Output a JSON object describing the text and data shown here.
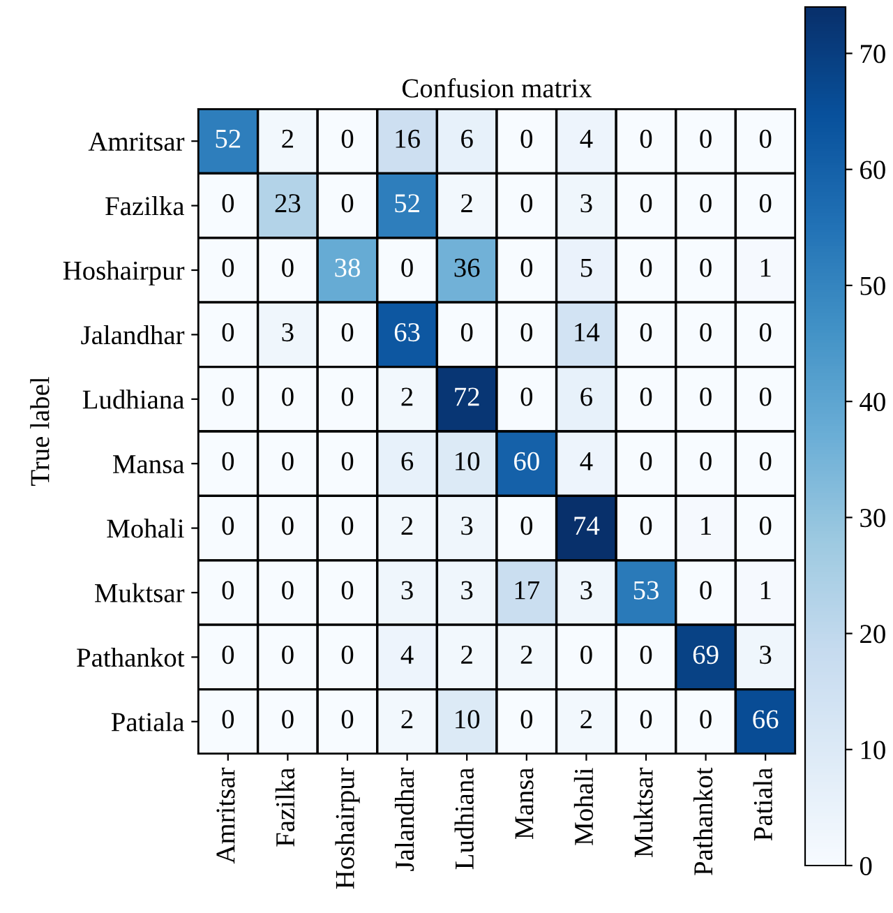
{
  "chart_data": {
    "type": "heatmap",
    "title": "Confusion matrix",
    "ylabel": "True label",
    "categories": [
      "Amritsar",
      "Fazilka",
      "Hoshairpur",
      "Jalandhar",
      "Ludhiana",
      "Mansa",
      "Mohali",
      "Muktsar",
      "Pathankot",
      "Patiala"
    ],
    "y_categories": [
      "Amritsar",
      "Fazilka",
      "Hoshairpur",
      "Jalandhar",
      "Ludhiana",
      "Mansa",
      "Mohali",
      "Muktsar",
      "Pathankot",
      "Patiala"
    ],
    "cells": [
      [
        52,
        2,
        0,
        16,
        6,
        0,
        4,
        0,
        0,
        0
      ],
      [
        0,
        23,
        0,
        52,
        2,
        0,
        3,
        0,
        0,
        0
      ],
      [
        0,
        0,
        38,
        0,
        36,
        0,
        5,
        0,
        0,
        1
      ],
      [
        0,
        3,
        0,
        63,
        0,
        0,
        14,
        0,
        0,
        0
      ],
      [
        0,
        0,
        0,
        2,
        72,
        0,
        6,
        0,
        0,
        0
      ],
      [
        0,
        0,
        0,
        6,
        10,
        60,
        4,
        0,
        0,
        0
      ],
      [
        0,
        0,
        0,
        2,
        3,
        0,
        74,
        0,
        1,
        0
      ],
      [
        0,
        0,
        0,
        3,
        3,
        17,
        3,
        53,
        0,
        1
      ],
      [
        0,
        0,
        0,
        4,
        2,
        2,
        0,
        0,
        69,
        3
      ],
      [
        0,
        0,
        0,
        2,
        10,
        0,
        2,
        0,
        0,
        66
      ]
    ],
    "data_labels": true,
    "clim": [
      0,
      74
    ],
    "cticks": [
      0,
      10,
      20,
      30,
      40,
      50,
      60,
      70
    ]
  }
}
